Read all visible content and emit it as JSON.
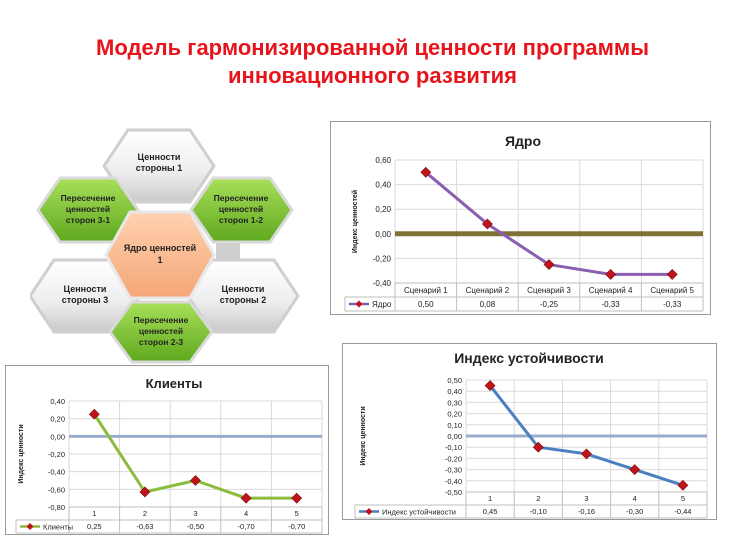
{
  "page": {
    "title_line1": "Модель гармонизированной ценности программы",
    "title_line2": "инновационного развития"
  },
  "diagram": {
    "hexagons": [
      {
        "id": "values-1",
        "lines": [
          "Ценности",
          "стороны 1"
        ],
        "tone": "white"
      },
      {
        "id": "values-2",
        "lines": [
          "Ценности",
          "стороны 2"
        ],
        "tone": "white"
      },
      {
        "id": "values-3",
        "lines": [
          "Ценности",
          "стороны 3"
        ],
        "tone": "white"
      },
      {
        "id": "intersect-1-2",
        "lines": [
          "Пересечение",
          "ценностей",
          "сторон 1-2"
        ],
        "tone": "green"
      },
      {
        "id": "intersect-2-3",
        "lines": [
          "Пересечение",
          "ценностей",
          "сторон 2-3"
        ],
        "tone": "green"
      },
      {
        "id": "intersect-3-1",
        "lines": [
          "Пересечение",
          "ценностей",
          "сторон 3-1"
        ],
        "tone": "green"
      },
      {
        "id": "core",
        "lines": [
          "Ядро ценностей",
          "1"
        ],
        "tone": "orange"
      }
    ]
  },
  "colors": {
    "title": "#e8141b",
    "core_line": "#8a5fb0",
    "clients_line": "#8bbc3d",
    "stability_line": "#4a7fc1",
    "marker": "#c0141b",
    "zero_line_core": "#6b5a14",
    "zero_line_other": "#8aa0c8"
  },
  "chart_data": [
    {
      "type": "line",
      "title": "Ядро",
      "ylabel": "Индекс ценностей",
      "categories": [
        "Сценарий 1",
        "Сценарий 2",
        "Сценарий 3",
        "Сценарий 4",
        "Сценарий 5"
      ],
      "series": [
        {
          "name": "Ядро",
          "values": [
            0.5,
            0.08,
            -0.25,
            -0.33,
            -0.33
          ]
        }
      ],
      "value_labels": [
        "0,50",
        "0,08",
        "-0,25",
        "-0,33",
        "-0,33"
      ],
      "yticks": [
        "0,60",
        "0,40",
        "0,20",
        "0,00",
        "-0,20",
        "-0,40"
      ],
      "ylim": [
        -0.4,
        0.6
      ],
      "legend": "table-bottom",
      "grid": true
    },
    {
      "type": "line",
      "title": "Клиенты",
      "ylabel": "Индекс ценности",
      "categories": [
        "1",
        "2",
        "3",
        "4",
        "5"
      ],
      "series": [
        {
          "name": "Клиенты",
          "values": [
            0.25,
            -0.63,
            -0.5,
            -0.7,
            -0.7
          ]
        }
      ],
      "value_labels": [
        "0,25",
        "-0,63",
        "-0,50",
        "-0,70",
        "-0,70"
      ],
      "yticks": [
        "0,40",
        "0,20",
        "0,00",
        "-0,20",
        "-0,40",
        "-0,60",
        "-0,80"
      ],
      "ylim": [
        -0.8,
        0.4
      ],
      "legend": "table-bottom",
      "grid": true
    },
    {
      "type": "line",
      "title": "Индекс устойчивости",
      "ylabel": "Индекс ценности",
      "categories": [
        "1",
        "2",
        "3",
        "4",
        "5"
      ],
      "series": [
        {
          "name": "Индекс устойчивости",
          "values": [
            0.45,
            -0.1,
            -0.16,
            -0.3,
            -0.44
          ]
        }
      ],
      "value_labels": [
        "0,45",
        "-0,10",
        "-0,16",
        "-0,30",
        "-0,44"
      ],
      "yticks": [
        "0,50",
        "0,40",
        "0,30",
        "0,20",
        "0,10",
        "0,00",
        "-0,10",
        "-0,20",
        "-0,30",
        "-0,40",
        "-0,50"
      ],
      "ylim": [
        -0.5,
        0.5
      ],
      "legend": "table-bottom",
      "grid": true
    }
  ]
}
